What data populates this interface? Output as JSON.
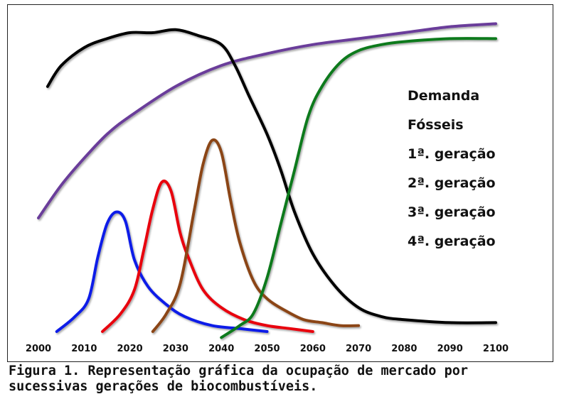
{
  "chart_data": {
    "type": "line",
    "title": "",
    "xlabel": "",
    "ylabel": "",
    "xlim": [
      2000,
      2100
    ],
    "ylim": [
      0,
      1
    ],
    "x_ticks": [
      "2000",
      "2010",
      "2020",
      "2030",
      "2040",
      "2050",
      "2060",
      "2070",
      "2080",
      "2090",
      "2100"
    ],
    "grid": false,
    "legend_position": "right",
    "series": [
      {
        "name": "Demanda",
        "color": "#6a3d9a",
        "x": [
          2000,
          2005,
          2010,
          2015,
          2020,
          2030,
          2040,
          2050,
          2060,
          2070,
          2080,
          2090,
          2100
        ],
        "y": [
          0.38,
          0.49,
          0.58,
          0.66,
          0.72,
          0.82,
          0.89,
          0.93,
          0.96,
          0.98,
          1.0,
          1.02,
          1.03
        ]
      },
      {
        "name": "Fósseis",
        "color": "#000000",
        "x": [
          2002,
          2005,
          2010,
          2015,
          2020,
          2025,
          2030,
          2035,
          2040,
          2043,
          2046,
          2050,
          2053,
          2056,
          2060,
          2065,
          2070,
          2075,
          2080,
          2090,
          2100
        ],
        "y": [
          0.82,
          0.89,
          0.95,
          0.98,
          1.0,
          1.0,
          1.01,
          0.99,
          0.96,
          0.89,
          0.79,
          0.66,
          0.54,
          0.4,
          0.26,
          0.15,
          0.08,
          0.05,
          0.04,
          0.03,
          0.03
        ]
      },
      {
        "name": "1ª. geração",
        "color": "#0a1be8",
        "x": [
          2004,
          2008,
          2011,
          2013,
          2015,
          2017,
          2019,
          2021,
          2024,
          2028,
          2032,
          2038,
          2044,
          2050
        ],
        "y": [
          0.0,
          0.05,
          0.11,
          0.25,
          0.36,
          0.4,
          0.37,
          0.24,
          0.15,
          0.09,
          0.05,
          0.02,
          0.01,
          0.0
        ]
      },
      {
        "name": "2ª. geração",
        "color": "#e8060c",
        "x": [
          2014,
          2018,
          2021,
          2023,
          2025,
          2027,
          2029,
          2031,
          2033,
          2036,
          2040,
          2045,
          2050,
          2055,
          2060
        ],
        "y": [
          0.0,
          0.06,
          0.14,
          0.27,
          0.41,
          0.5,
          0.47,
          0.33,
          0.24,
          0.14,
          0.08,
          0.04,
          0.02,
          0.01,
          0.0
        ]
      },
      {
        "name": "3ª. geração",
        "color": "#8b4513",
        "x": [
          2025,
          2028,
          2031,
          2034,
          2036,
          2038,
          2040,
          2042,
          2044,
          2047,
          2050,
          2054,
          2058,
          2062,
          2066,
          2070
        ],
        "y": [
          0.0,
          0.06,
          0.16,
          0.4,
          0.56,
          0.64,
          0.6,
          0.44,
          0.3,
          0.17,
          0.11,
          0.07,
          0.04,
          0.03,
          0.02,
          0.02
        ]
      },
      {
        "name": "4ª. geração",
        "color": "#0e7a1e",
        "x": [
          2040,
          2044,
          2047,
          2050,
          2053,
          2056,
          2059,
          2062,
          2066,
          2070,
          2075,
          2080,
          2090,
          2100
        ],
        "y": [
          -0.02,
          0.02,
          0.06,
          0.18,
          0.36,
          0.54,
          0.72,
          0.82,
          0.9,
          0.94,
          0.96,
          0.97,
          0.98,
          0.98
        ]
      }
    ]
  },
  "caption": "Figura 1. Representação gráfica da ocupação de mercado por\nsucessivas gerações de biocombustíveis."
}
